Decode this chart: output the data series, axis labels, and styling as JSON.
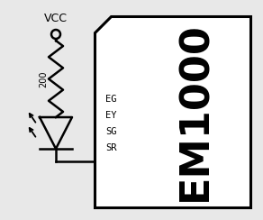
{
  "bg_color": "#e8e8e8",
  "box_bg": "#ffffff",
  "line_color": "#000000",
  "title": "EM1000",
  "pins": [
    "EG",
    "EY",
    "SG",
    "SR"
  ],
  "vcc_label": "VCC",
  "resistor_label": "200",
  "font_size_title": 32,
  "font_size_pins": 7.5,
  "font_size_vcc": 9,
  "font_size_res": 7
}
